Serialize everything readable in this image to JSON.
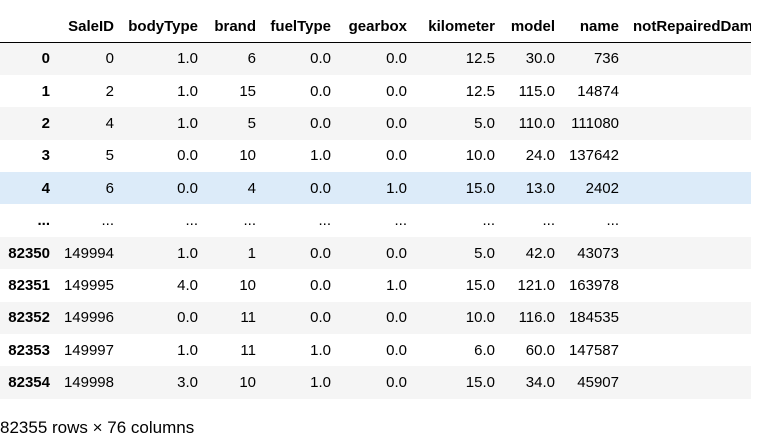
{
  "columns": [
    "SaleID",
    "bodyType",
    "brand",
    "fuelType",
    "gearbox",
    "kilometer",
    "model",
    "name",
    "notRepairedDamage"
  ],
  "rows": [
    {
      "index": "0",
      "cells": [
        "0",
        "1.0",
        "6",
        "0.0",
        "0.0",
        "12.5",
        "30.0",
        "736",
        ""
      ]
    },
    {
      "index": "1",
      "cells": [
        "2",
        "1.0",
        "15",
        "0.0",
        "0.0",
        "12.5",
        "115.0",
        "14874",
        ""
      ]
    },
    {
      "index": "2",
      "cells": [
        "4",
        "1.0",
        "5",
        "0.0",
        "0.0",
        "5.0",
        "110.0",
        "111080",
        ""
      ]
    },
    {
      "index": "3",
      "cells": [
        "5",
        "0.0",
        "10",
        "1.0",
        "0.0",
        "10.0",
        "24.0",
        "137642",
        ""
      ]
    },
    {
      "index": "4",
      "cells": [
        "6",
        "0.0",
        "4",
        "0.0",
        "1.0",
        "15.0",
        "13.0",
        "2402",
        ""
      ]
    },
    {
      "index": "...",
      "cells": [
        "...",
        "...",
        "...",
        "...",
        "...",
        "...",
        "...",
        "...",
        ""
      ]
    },
    {
      "index": "82350",
      "cells": [
        "149994",
        "1.0",
        "1",
        "0.0",
        "0.0",
        "5.0",
        "42.0",
        "43073",
        ""
      ]
    },
    {
      "index": "82351",
      "cells": [
        "149995",
        "4.0",
        "10",
        "0.0",
        "1.0",
        "15.0",
        "121.0",
        "163978",
        ""
      ]
    },
    {
      "index": "82352",
      "cells": [
        "149996",
        "0.0",
        "11",
        "0.0",
        "0.0",
        "10.0",
        "116.0",
        "184535",
        ""
      ]
    },
    {
      "index": "82353",
      "cells": [
        "149997",
        "1.0",
        "11",
        "1.0",
        "0.0",
        "6.0",
        "60.0",
        "147587",
        ""
      ]
    },
    {
      "index": "82354",
      "cells": [
        "149998",
        "3.0",
        "10",
        "1.0",
        "0.0",
        "15.0",
        "34.0",
        "45907",
        ""
      ]
    }
  ],
  "hover_row": 4,
  "hover_color": "#dcebf9",
  "summary": "82355 rows × 76 columns"
}
